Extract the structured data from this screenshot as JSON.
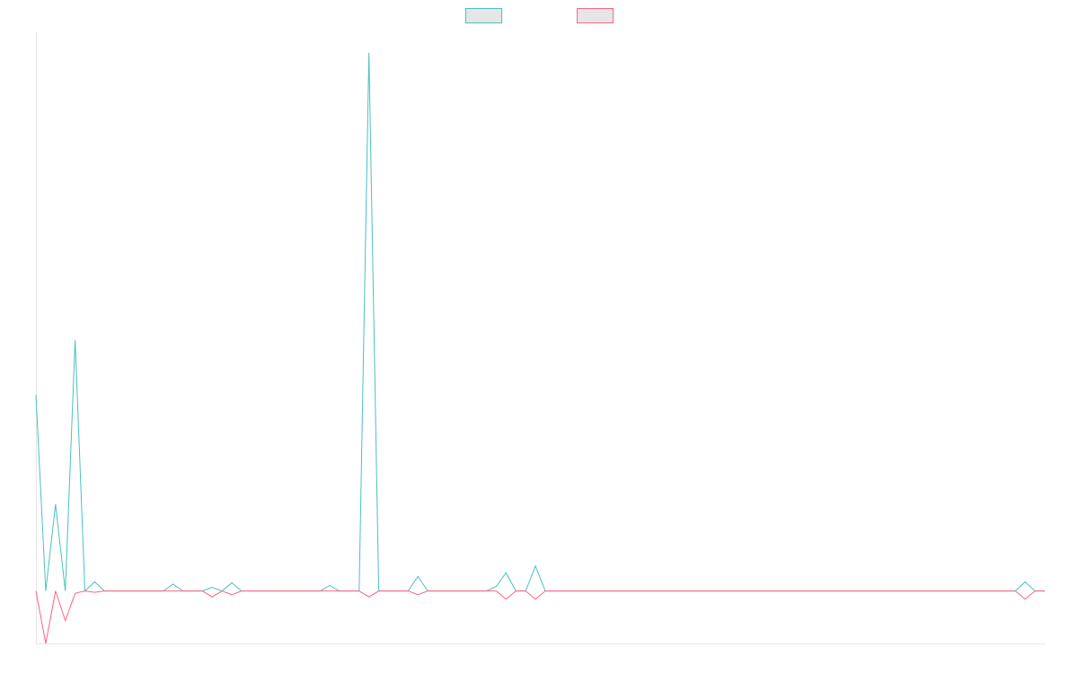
{
  "chart_data": {
    "type": "line",
    "title": "",
    "xlabel": "",
    "ylabel": "",
    "grid": false,
    "legend_position": "top-center",
    "x_count": 104,
    "series": [
      {
        "color": "#4bc0c0",
        "legend_fill": "#e6e6e6",
        "points": [
          [
            0,
            43
          ],
          [
            1,
            0
          ],
          [
            2,
            19
          ],
          [
            3,
            0
          ],
          [
            4,
            55
          ],
          [
            5,
            0
          ],
          [
            6,
            2
          ],
          [
            14,
            1.5
          ],
          [
            18,
            0.8
          ],
          [
            19,
            0
          ],
          [
            20,
            1.8
          ],
          [
            30,
            1.2
          ],
          [
            33,
            0
          ],
          [
            34,
            118
          ],
          [
            35,
            0
          ],
          [
            39,
            3.2
          ],
          [
            40,
            0
          ],
          [
            47,
            1
          ],
          [
            48,
            4
          ],
          [
            49,
            0
          ],
          [
            51,
            5.5
          ],
          [
            52,
            0
          ],
          [
            101,
            2
          ],
          [
            102,
            0
          ]
        ]
      },
      {
        "color": "#ff6384",
        "legend_fill": "#e6e6e6",
        "points": [
          [
            0,
            0
          ],
          [
            1,
            -11.5
          ],
          [
            2,
            0
          ],
          [
            3,
            -6.5
          ],
          [
            4,
            -0.5
          ],
          [
            6,
            -0.3
          ],
          [
            18,
            -1.3
          ],
          [
            19,
            0
          ],
          [
            20,
            -0.8
          ],
          [
            21,
            0
          ],
          [
            33,
            0
          ],
          [
            34,
            -1.3
          ],
          [
            35,
            0
          ],
          [
            39,
            -0.8
          ],
          [
            40,
            0
          ],
          [
            48,
            -1.8
          ],
          [
            49,
            0
          ],
          [
            51,
            -1.8
          ],
          [
            52,
            0
          ],
          [
            101,
            -1.8
          ],
          [
            102,
            0
          ]
        ]
      }
    ],
    "baseline_value": 0,
    "ylim": [
      -11.5,
      122.5
    ]
  }
}
